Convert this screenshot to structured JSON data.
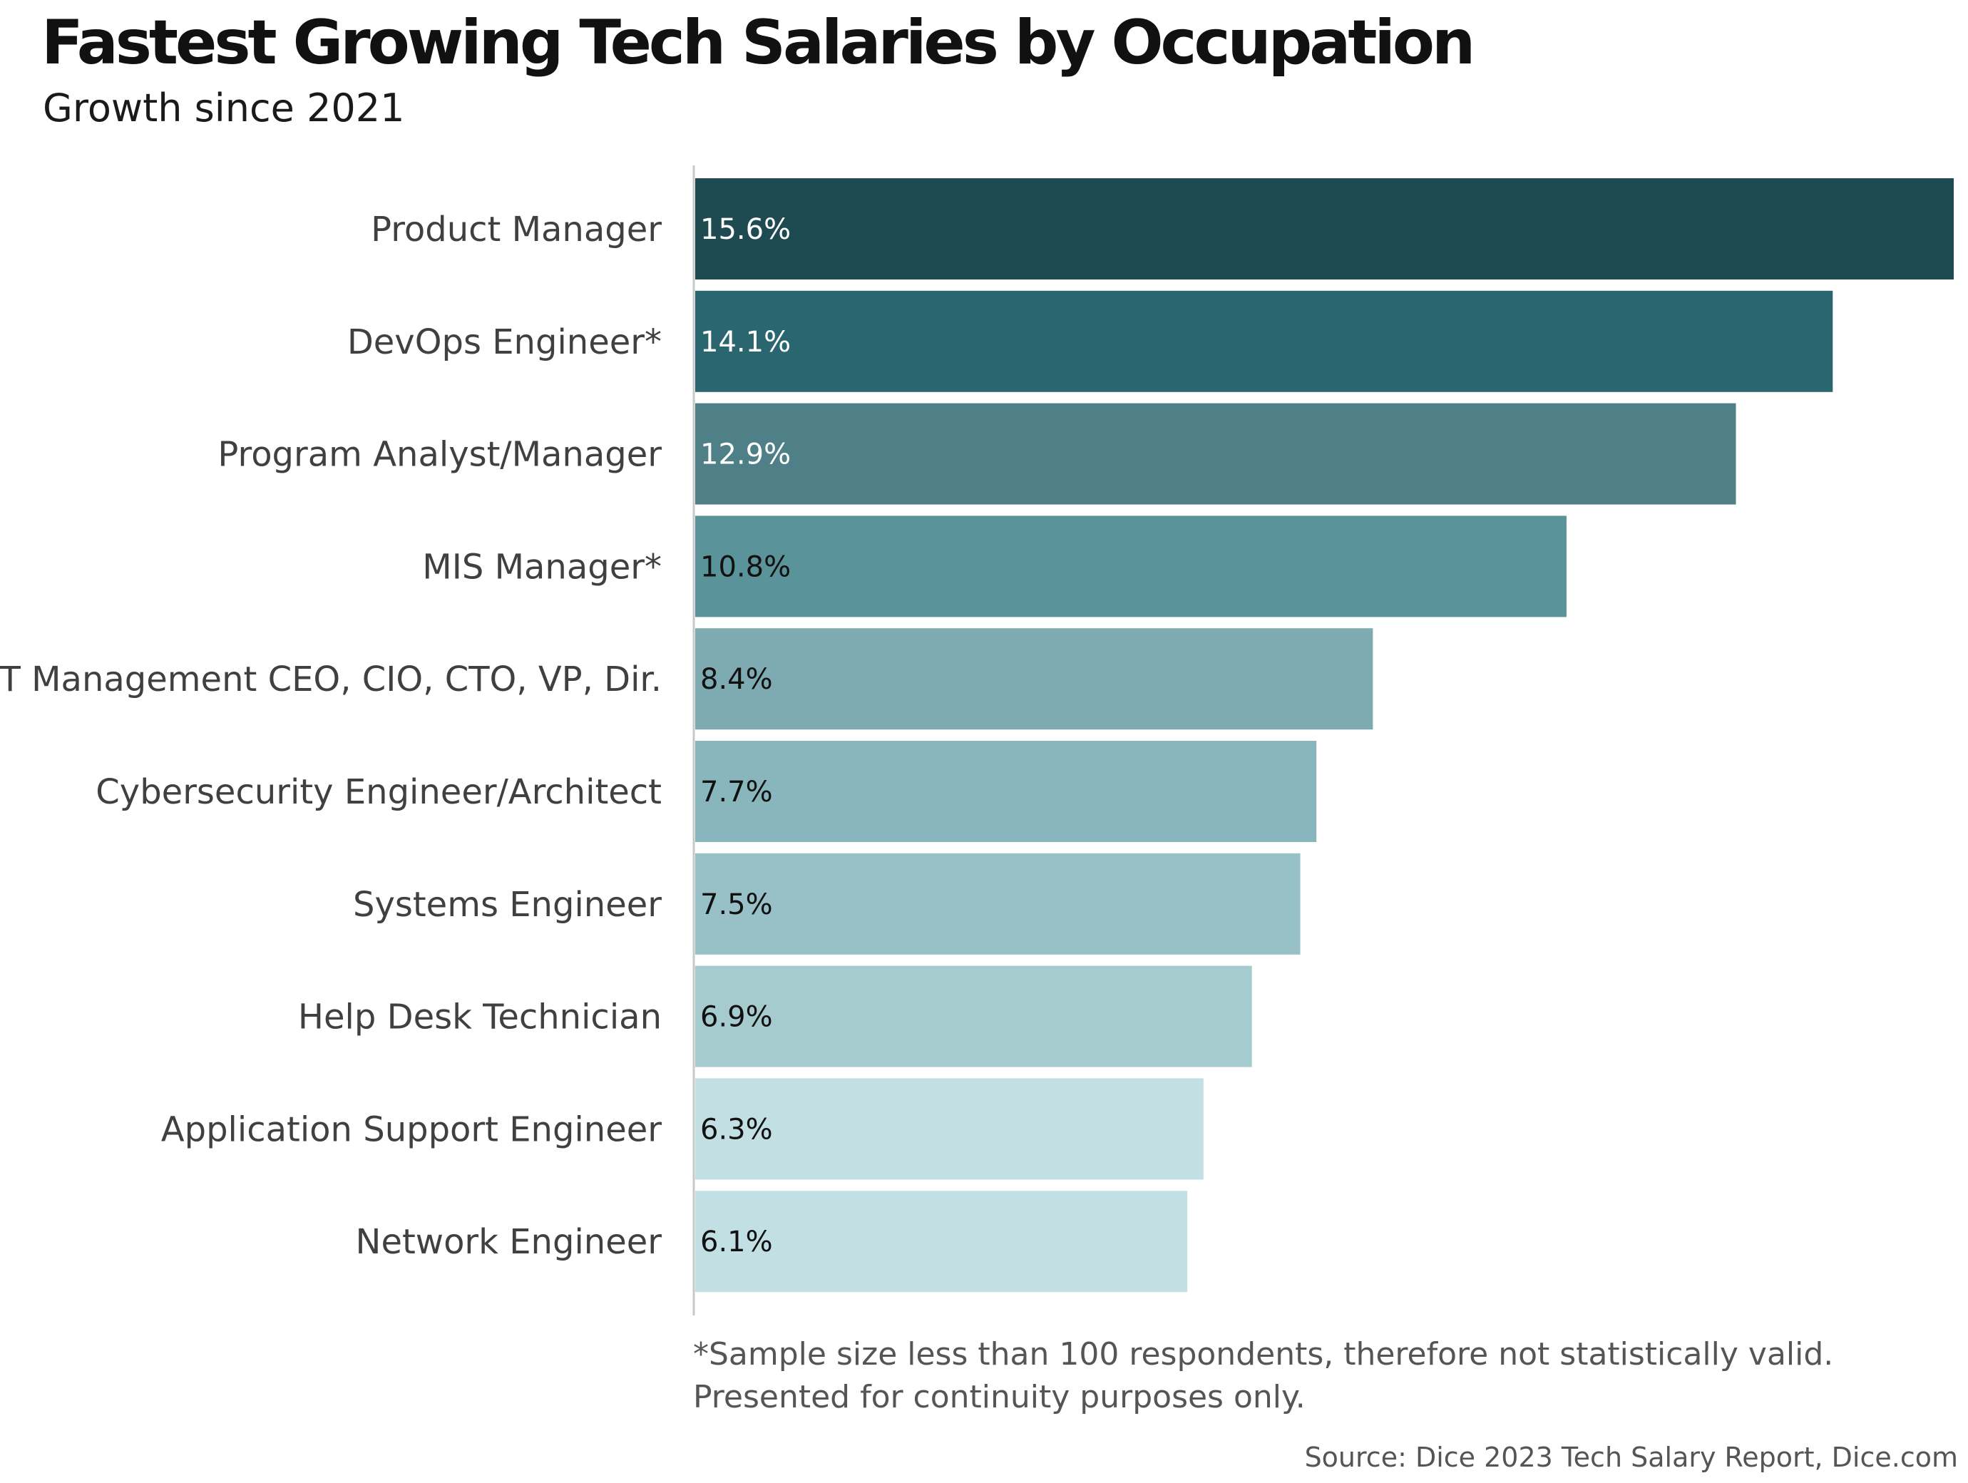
{
  "header": {
    "title": "Fastest Growing Tech Salaries by Occupation",
    "subtitle": "Growth since 2021"
  },
  "footnote": {
    "line1": "*Sample size less than 100 respondents, therefore not statistically valid.",
    "line2": "Presented for continuity purposes only."
  },
  "source": "Source: Dice 2023 Tech Salary Report, Dice.com",
  "chart_data": {
    "type": "bar",
    "orientation": "horizontal",
    "title": "Fastest Growing Tech Salaries by Occupation",
    "subtitle": "Growth since 2021",
    "categories": [
      "Product Manager",
      "DevOps Engineer*",
      "Program Analyst/Manager",
      "MIS Manager*",
      "IT Management CEO, CIO, CTO, VP, Dir.",
      "Cybersecurity Engineer/Architect",
      "Systems Engineer",
      "Help Desk Technician",
      "Application Support Engineer",
      "Network Engineer"
    ],
    "values": [
      15.6,
      14.1,
      12.9,
      10.8,
      8.4,
      7.7,
      7.5,
      6.9,
      6.3,
      6.1
    ],
    "value_labels": [
      "15.6%",
      "14.1%",
      "12.9%",
      "10.8%",
      "8.4%",
      "7.7%",
      "7.5%",
      "6.9%",
      "6.3%",
      "6.1%"
    ],
    "bar_colors": [
      "#1e4a52",
      "#2a6670",
      "#4f8087",
      "#5a9399",
      "#7dabb1",
      "#88b6bc",
      "#98c1c7",
      "#a6cbce",
      "#c2e0e4",
      "#c2e0e4"
    ],
    "label_colors": [
      "#ffffff",
      "#ffffff",
      "#ffffff",
      "#111111",
      "#111111",
      "#111111",
      "#111111",
      "#111111",
      "#111111",
      "#111111"
    ],
    "xlim": [
      0,
      15.6
    ],
    "xlabel": "",
    "ylabel": "",
    "grid": false,
    "legend": "none"
  }
}
